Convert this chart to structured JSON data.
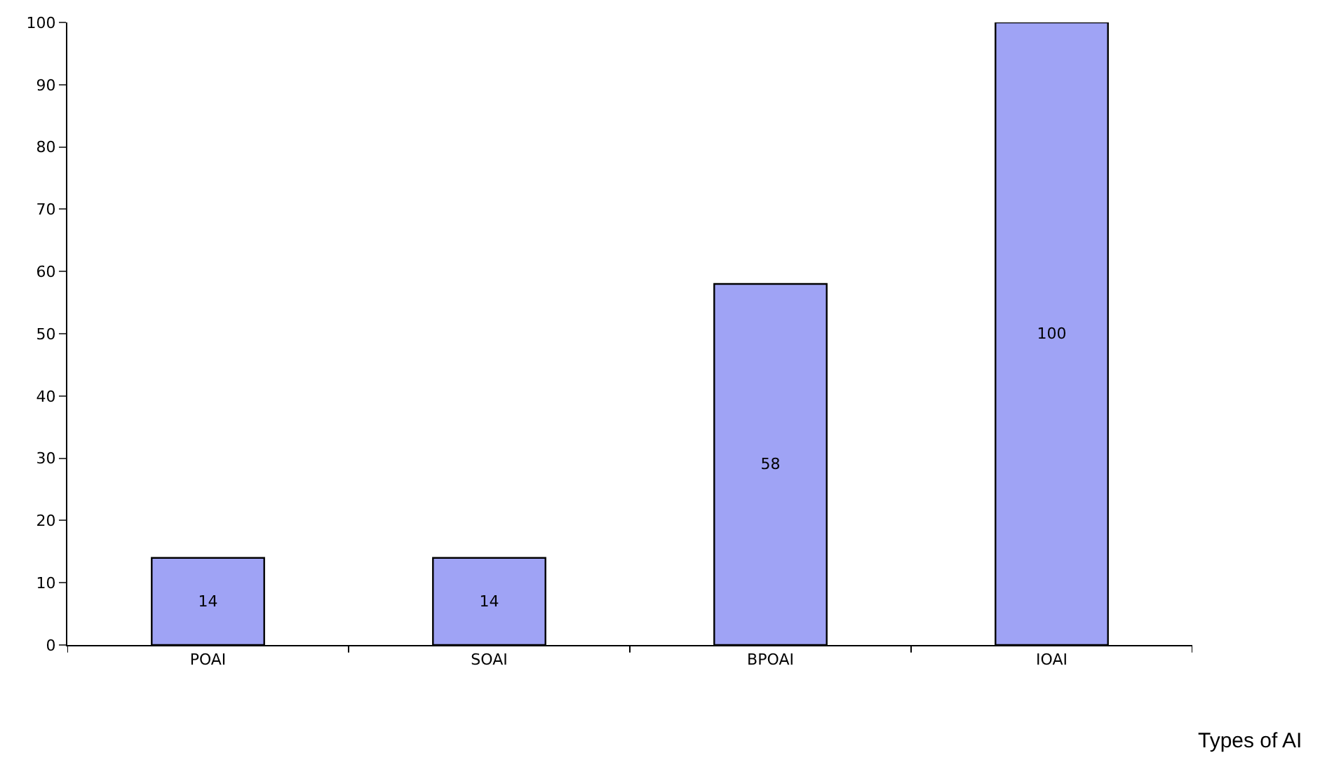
{
  "chart_data": {
    "type": "bar",
    "xlabel": "Types of AI",
    "categories": [
      "POAI",
      "SOAI",
      "BPOAI",
      "IOAI"
    ],
    "values": [
      14,
      14,
      58,
      100
    ],
    "color": "#9fa3f5",
    "ylim": [
      0,
      100
    ],
    "yticks": [
      0,
      10,
      20,
      30,
      40,
      50,
      60,
      70,
      80,
      90,
      100
    ],
    "data_labels": true
  }
}
